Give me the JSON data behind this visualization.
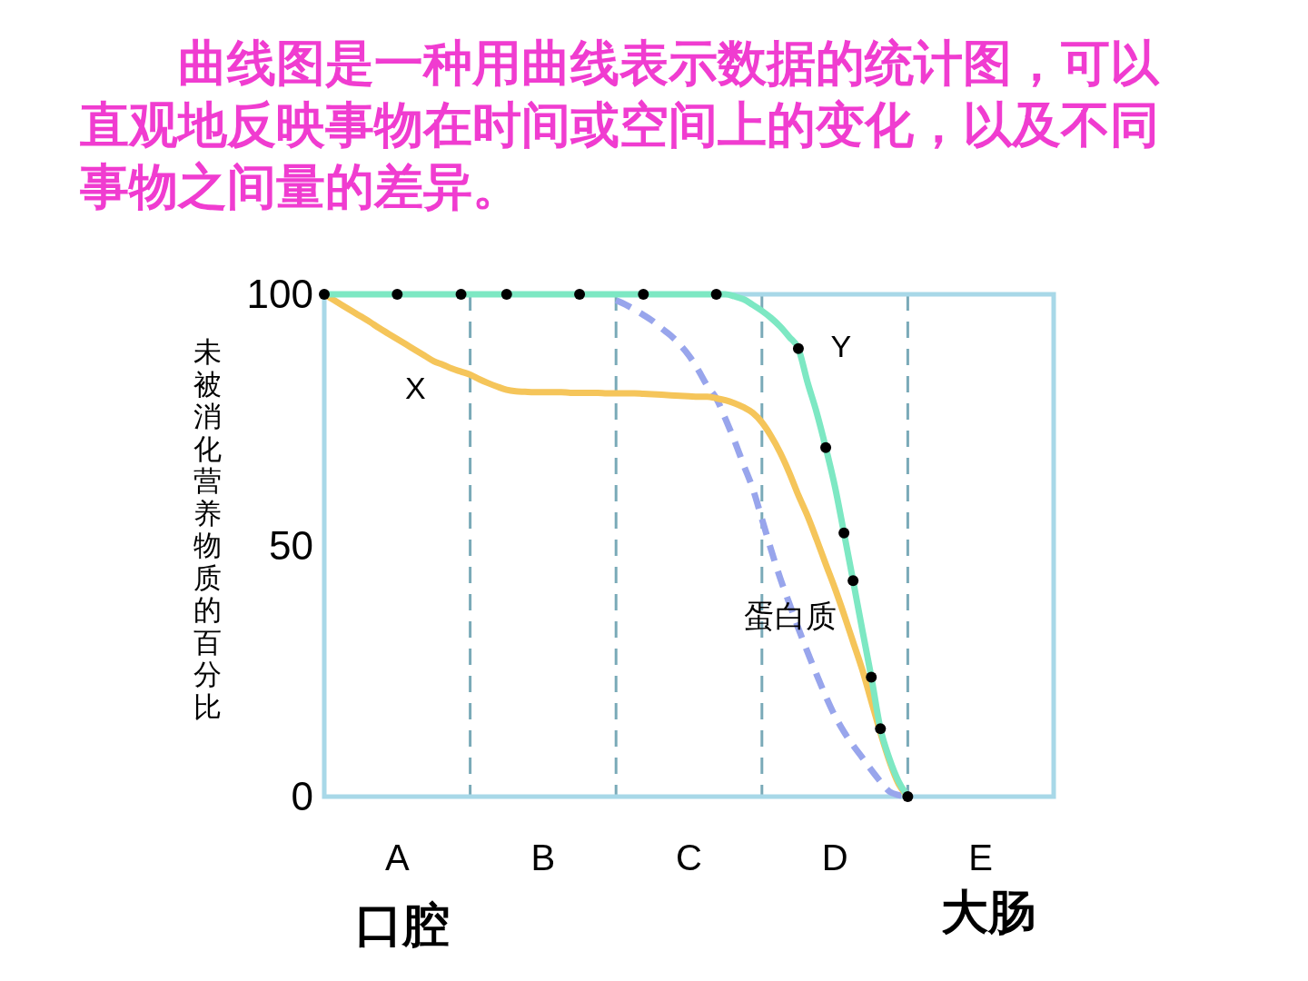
{
  "chart_data": {
    "type": "line",
    "title": "曲线图是一种用曲线表示数据的统计图，可以直观地反映事物在时间或空间上的变化，以及不同事物之间量的差异。",
    "ylabel": "未被消化营养物质的百分比",
    "categories": [
      null,
      null,
      null,
      null,
      null,
      null,
      null,
      null,
      "A",
      null,
      null,
      null,
      null,
      null,
      null,
      null,
      null,
      null,
      null,
      null,
      null,
      null,
      null,
      null,
      "B",
      null,
      null,
      null,
      null,
      null,
      null,
      null,
      null,
      null,
      null,
      null,
      null,
      null,
      null,
      null,
      "C",
      null,
      null,
      null,
      null,
      null,
      null,
      null,
      null,
      null,
      null,
      null,
      null,
      null,
      null,
      null,
      "D",
      null,
      null,
      null,
      null,
      null,
      null,
      null,
      null,
      null,
      null,
      null,
      null,
      null,
      null,
      null,
      "E",
      null,
      null,
      null,
      null,
      null,
      null,
      null,
      null
    ],
    "ylim": [
      0,
      100
    ],
    "yticks": [
      0,
      50,
      100
    ],
    "series": [
      {
        "name": "X",
        "color": "#f5c55a",
        "line_style": "solid",
        "values": [
          100,
          98.9,
          97.8,
          96.7,
          95.6,
          94.5,
          93.3,
          92.2,
          91.1,
          90,
          88.9,
          87.8,
          86.7,
          86,
          85.2,
          84.6,
          84,
          83.1,
          82.3,
          81.6,
          81,
          80.7,
          80.6,
          80.5,
          80.5,
          80.5,
          80.5,
          80.4,
          80.4,
          80.4,
          80.4,
          80.3,
          80.3,
          80.3,
          80.3,
          80.2,
          80.1,
          80,
          79.9,
          79.8,
          79.7,
          79.6,
          79.6,
          79.3,
          78.9,
          78.3,
          77.5,
          76.4,
          74.5,
          71.8,
          68.5,
          64.5,
          60,
          55.9,
          51.2,
          46.3,
          41.5,
          36.3,
          30.8,
          25.3,
          19,
          12.7,
          7,
          2.5,
          0,
          null,
          null,
          null,
          null,
          null,
          null,
          null,
          null,
          null,
          null,
          null,
          null,
          null,
          null,
          null,
          null
        ]
      },
      {
        "name": "Y",
        "color": "#7de8c3",
        "line_style": "solid",
        "values": [
          100,
          100,
          100,
          100,
          100,
          100,
          100,
          100,
          100,
          100,
          100,
          100,
          100,
          100,
          100,
          100,
          100,
          100,
          100,
          100,
          100,
          100,
          100,
          100,
          100,
          100,
          100,
          100,
          100,
          100,
          100,
          100,
          100,
          100,
          100,
          100,
          100,
          100,
          100,
          100,
          100,
          100,
          100,
          100,
          100,
          99.6,
          99,
          97.9,
          96.7,
          95.3,
          93.6,
          91.5,
          89.2,
          82.5,
          76.5,
          69.5,
          61.8,
          52.5,
          43,
          33.3,
          23.8,
          13.5,
          7.5,
          3,
          0,
          null,
          null,
          null,
          null,
          null,
          null,
          null,
          null,
          null,
          null,
          null,
          null,
          null,
          null,
          null,
          null
        ]
      },
      {
        "name": "蛋白质",
        "color": "#98a5ec",
        "line_style": "dashed",
        "values": [
          null,
          null,
          null,
          null,
          null,
          null,
          null,
          null,
          null,
          null,
          null,
          null,
          null,
          null,
          null,
          null,
          null,
          null,
          null,
          null,
          null,
          null,
          null,
          null,
          null,
          null,
          null,
          null,
          null,
          null,
          null,
          null,
          98.8,
          98,
          97,
          95.9,
          94.7,
          93.2,
          91.8,
          90,
          87.8,
          85,
          81.8,
          79.3,
          75.2,
          70.8,
          66,
          61.3,
          55.3,
          49.2,
          43.5,
          38.5,
          33.5,
          28.8,
          24.3,
          20,
          16.1,
          12.9,
          10.2,
          7.8,
          5.3,
          3,
          1,
          0.3,
          0,
          null,
          null,
          null,
          null,
          null,
          null,
          null,
          null,
          null,
          null,
          null,
          null,
          null,
          null,
          null,
          null
        ]
      },
      {
        "type": "scatter",
        "color": "#000000",
        "marker": "circle",
        "values": [
          100,
          null,
          null,
          null,
          null,
          null,
          null,
          null,
          100,
          null,
          null,
          null,
          null,
          null,
          null,
          100,
          null,
          null,
          null,
          null,
          100,
          null,
          null,
          null,
          null,
          null,
          null,
          null,
          100,
          null,
          null,
          null,
          null,
          null,
          null,
          100,
          null,
          null,
          null,
          null,
          null,
          null,
          null,
          100,
          null,
          null,
          null,
          null,
          null,
          null,
          null,
          null,
          89.2,
          null,
          null,
          69.5,
          null,
          52.5,
          43,
          null,
          23.8,
          13.5,
          null,
          null,
          0,
          null,
          null,
          null,
          null,
          null,
          null,
          null,
          null,
          null,
          null,
          null,
          null,
          null,
          null,
          null,
          null
        ]
      }
    ],
    "annotations": [
      "口腔",
      "大肠"
    ]
  }
}
